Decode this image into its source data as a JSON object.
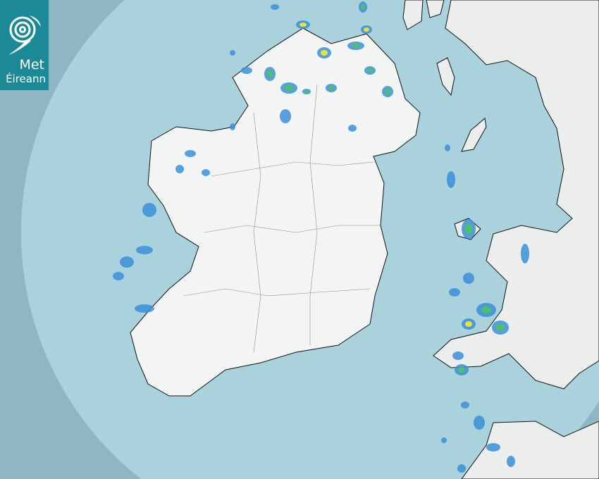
{
  "logo": {
    "line1": "Met",
    "line2": "Éireann",
    "color": "#1b8a96"
  },
  "colors": {
    "sea_in_range": "#a9d2dd",
    "sea_out_of_range": "#8fb6c2",
    "land": "#f2f3f3",
    "rain_light": "#3b8fd8",
    "rain_moderate": "#4cc06a",
    "rain_heavy": "#e4e43a"
  }
}
